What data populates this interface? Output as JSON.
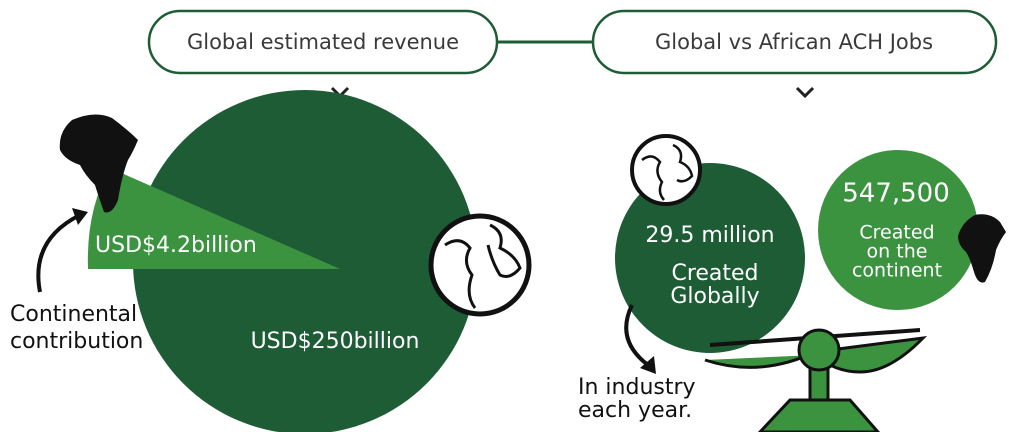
{
  "revenue": {
    "title": "Global estimated revenue",
    "continent_value": "USD$4.2billion",
    "continent_label": [
      "Continental",
      "contribution"
    ],
    "global_value": "USD$250billion"
  },
  "jobs": {
    "title": "Global vs African ACH Jobs",
    "global_value": "29.5 million",
    "global_label": [
      "Created",
      "Globally"
    ],
    "continent_value": "547,500",
    "continent_label": [
      "Created",
      "on the",
      "continent"
    ],
    "note": [
      "In industry",
      "each year."
    ]
  }
}
